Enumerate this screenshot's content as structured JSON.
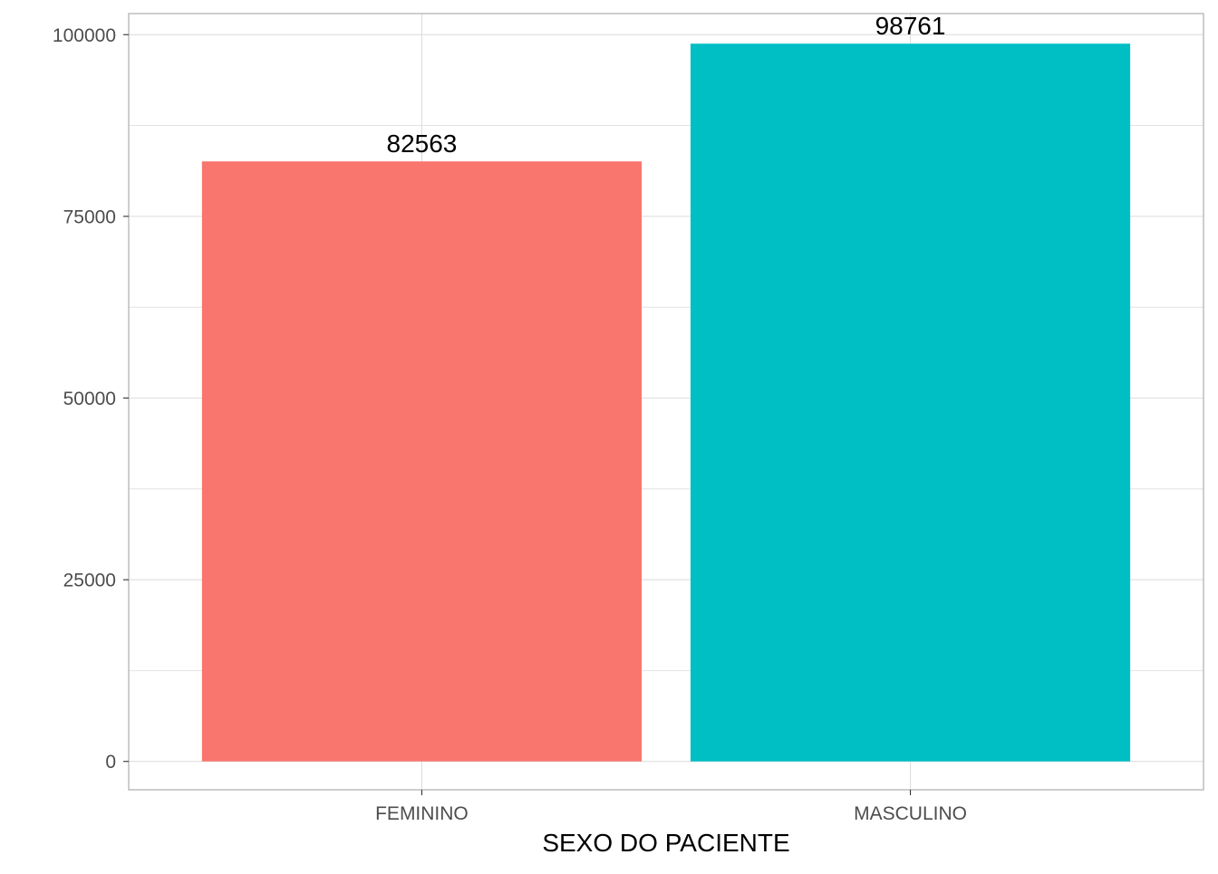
{
  "chart_data": {
    "type": "bar",
    "categories": [
      "FEMININO",
      "MASCULINO"
    ],
    "values": [
      82563,
      98761
    ],
    "data_labels": [
      "82563",
      "98761"
    ],
    "colors": [
      "#F8766D",
      "#00BFC4"
    ],
    "title": "",
    "xlabel": "SEXO DO PACIENTE",
    "ylabel": "",
    "ylim": [
      -3900,
      102900
    ],
    "y_ticks": [
      0,
      25000,
      50000,
      75000,
      100000
    ],
    "y_tick_labels": [
      "0",
      "25000",
      "50000",
      "75000",
      "100000"
    ],
    "y_minor_ticks": [
      12500,
      37500,
      62500,
      87500
    ],
    "grid": true,
    "legend": "none"
  },
  "style": {
    "panel_border_color": "#b3b3b3",
    "grid_color": "#dedede",
    "tick_label_color": "#4d4d4d",
    "axis_title_color": "#000000",
    "data_label_color": "#000000"
  }
}
